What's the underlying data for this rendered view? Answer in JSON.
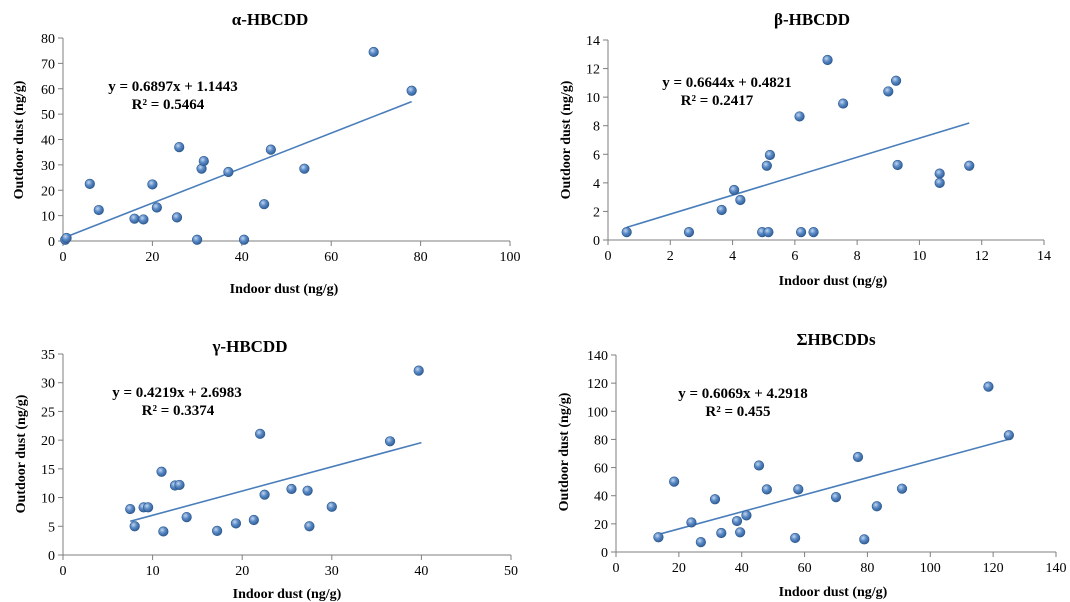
{
  "colors": {
    "marker": "#4f81bd",
    "trendline": "#4a7ebb",
    "axis": "#7f7f7f"
  },
  "chart_data": [
    {
      "type": "scatter",
      "title": "α-HBCDD",
      "xlabel": "Indoor dust (ng/g)",
      "ylabel": "Outdoor dust (ng/g)",
      "xlim": [
        0,
        100
      ],
      "xticks": [
        0,
        20,
        40,
        60,
        80,
        100
      ],
      "ylim": [
        0,
        80
      ],
      "yticks": [
        0,
        10,
        20,
        30,
        40,
        50,
        60,
        70,
        80
      ],
      "grid": false,
      "equation": "y = 0.6897x + 1.1443",
      "r2": "R² = 0.5464",
      "trendline": {
        "slope": 0.6897,
        "intercept": 1.1443,
        "x_range": [
          0,
          78
        ]
      },
      "points": [
        [
          0.5,
          0.5
        ],
        [
          0.8,
          1.2
        ],
        [
          6,
          22.5
        ],
        [
          8,
          12.2
        ],
        [
          16,
          8.8
        ],
        [
          18,
          8.5
        ],
        [
          20,
          22.3
        ],
        [
          21,
          13.2
        ],
        [
          25.5,
          9.3
        ],
        [
          26,
          37
        ],
        [
          30,
          0.5
        ],
        [
          31,
          28.5
        ],
        [
          31.5,
          31.5
        ],
        [
          37,
          27.2
        ],
        [
          40.5,
          0.5
        ],
        [
          45,
          14.5
        ],
        [
          46.5,
          36
        ],
        [
          54,
          28.5
        ],
        [
          69.5,
          74.5
        ],
        [
          78,
          59.2
        ]
      ]
    },
    {
      "type": "scatter",
      "title": "β-HBCDD",
      "xlabel": "Indoor dust (ng/g)",
      "ylabel": "Outdoor dust (ng/g)",
      "xlim": [
        0,
        14
      ],
      "xticks": [
        0,
        2,
        4,
        6,
        8,
        10,
        12,
        14
      ],
      "ylim": [
        0,
        14
      ],
      "yticks": [
        0,
        2,
        4,
        6,
        8,
        10,
        12,
        14
      ],
      "grid": false,
      "equation": "y = 0.6644x + 0.4821",
      "r2": "R² = 0.2417",
      "trendline": {
        "slope": 0.6644,
        "intercept": 0.4821,
        "x_range": [
          0.6,
          11.6
        ]
      },
      "points": [
        [
          0.6,
          0.55
        ],
        [
          2.6,
          0.55
        ],
        [
          3.65,
          2.1
        ],
        [
          4.05,
          3.5
        ],
        [
          4.25,
          2.8
        ],
        [
          4.95,
          0.55
        ],
        [
          5.1,
          5.2
        ],
        [
          5.15,
          0.55
        ],
        [
          5.2,
          5.95
        ],
        [
          6.15,
          8.65
        ],
        [
          6.2,
          0.55
        ],
        [
          6.6,
          0.55
        ],
        [
          7.05,
          12.6
        ],
        [
          7.55,
          9.55
        ],
        [
          9,
          10.4
        ],
        [
          9.25,
          11.15
        ],
        [
          9.3,
          5.25
        ],
        [
          10.65,
          4.65
        ],
        [
          10.65,
          4.0
        ],
        [
          11.6,
          5.2
        ]
      ]
    },
    {
      "type": "scatter",
      "title": "γ-HBCDD",
      "xlabel": "Indoor dust (ng/g)",
      "ylabel": "Outdoor dust (ng/g)",
      "xlim": [
        0,
        50
      ],
      "xticks": [
        0,
        10,
        20,
        30,
        40,
        50
      ],
      "ylim": [
        0,
        35
      ],
      "yticks": [
        0,
        5,
        10,
        15,
        20,
        25,
        30,
        35
      ],
      "grid": false,
      "equation": "y = 0.4219x + 2.6983",
      "r2": "R² = 0.3374",
      "trendline": {
        "slope": 0.4219,
        "intercept": 2.6983,
        "x_range": [
          7.5,
          40
        ]
      },
      "points": [
        [
          7.5,
          8
        ],
        [
          8,
          5
        ],
        [
          9,
          8.3
        ],
        [
          9.5,
          8.3
        ],
        [
          11,
          14.5
        ],
        [
          11.2,
          4.1
        ],
        [
          12.5,
          12.1
        ],
        [
          13,
          12.2
        ],
        [
          13.8,
          6.6
        ],
        [
          17.2,
          4.2
        ],
        [
          19.3,
          5.5
        ],
        [
          21.3,
          6.1
        ],
        [
          22,
          21.1
        ],
        [
          22.5,
          10.5
        ],
        [
          25.5,
          11.5
        ],
        [
          27.3,
          11.2
        ],
        [
          27.5,
          5
        ],
        [
          30,
          8.4
        ],
        [
          36.5,
          19.8
        ],
        [
          39.7,
          32.1
        ]
      ]
    },
    {
      "type": "scatter",
      "title": "ΣHBCDDs",
      "xlabel": "Indoor dust (ng/g)",
      "ylabel": "Outdoor dust (ng/g)",
      "xlim": [
        0,
        140
      ],
      "xticks": [
        0,
        20,
        40,
        60,
        80,
        100,
        120,
        140
      ],
      "ylim": [
        0,
        140
      ],
      "yticks": [
        0,
        20,
        40,
        60,
        80,
        100,
        120,
        140
      ],
      "grid": false,
      "equation": "y = 0.6069x + 4.2918",
      "r2": "R² = 0.455",
      "trendline": {
        "slope": 0.6069,
        "intercept": 4.2918,
        "x_range": [
          13.5,
          125
        ]
      },
      "points": [
        [
          13.5,
          10.5
        ],
        [
          18.5,
          50
        ],
        [
          24,
          21
        ],
        [
          27,
          7
        ],
        [
          31.5,
          37.5
        ],
        [
          33.5,
          13.5
        ],
        [
          38.5,
          22
        ],
        [
          39.5,
          14
        ],
        [
          41.5,
          26
        ],
        [
          45.5,
          61.5
        ],
        [
          48,
          44.5
        ],
        [
          57,
          10
        ],
        [
          58,
          44.5
        ],
        [
          70,
          39
        ],
        [
          77,
          67.5
        ],
        [
          79,
          9
        ],
        [
          83,
          32.5
        ],
        [
          91,
          45
        ],
        [
          118.5,
          117.5
        ],
        [
          125,
          83
        ]
      ]
    }
  ]
}
